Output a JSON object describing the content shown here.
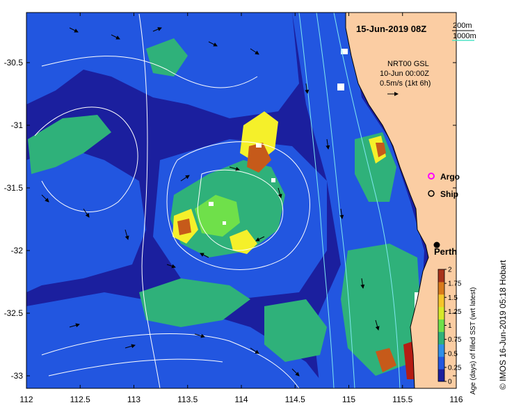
{
  "title": "15-Jun-2019 08Z",
  "scale": {
    "short": "200m",
    "long": "1000m"
  },
  "currents": {
    "source": "NRT00 GSL",
    "date": "10-Jun 00:00Z",
    "speed": "0.5m/s (1kt 6h)"
  },
  "legend": {
    "argo": "Argo",
    "ship": "Ship"
  },
  "place": "Perth",
  "colorbar": {
    "label": "Age (days) of filled SST (wrt latest)",
    "ticks": [
      "0",
      "0.25",
      "0.5",
      "0.75",
      "1",
      "1.25",
      "1.5",
      "1.75",
      "2"
    ]
  },
  "credit": "© IMOS 16-Jun-2019 05:18 Hobart",
  "axes": {
    "x_ticks": [
      "112",
      "112.5",
      "113",
      "113.5",
      "114",
      "114.5",
      "115",
      "115.5",
      "116"
    ],
    "y_ticks": [
      "-30.5",
      "-31",
      "-31.5",
      "-32",
      "-32.5",
      "-33"
    ],
    "xlim": [
      112,
      116
    ],
    "ylim": [
      -33.1,
      -30.1
    ]
  },
  "colors": {
    "land": "#fbcda3",
    "deep": "#1b1f9e",
    "blue": "#2256e0",
    "green": "#2fb17a",
    "lime": "#6fe04a",
    "yellow": "#f5f02a",
    "brown": "#c65a1a",
    "white": "#ffffff",
    "contour": "#7fe8f0",
    "scale_line": "#4fe3c6",
    "argo": "#ff00ff"
  }
}
